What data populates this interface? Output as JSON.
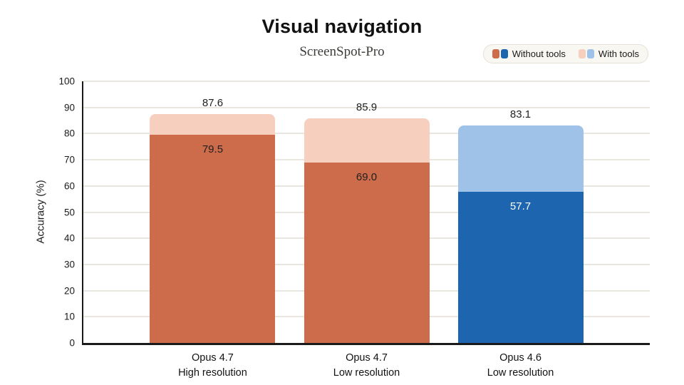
{
  "chart_data": {
    "type": "bar",
    "variant": "stacked",
    "title": "Visual navigation",
    "subtitle": "ScreenSpot-Pro",
    "ylabel": "Accuracy (%)",
    "ylim": [
      0,
      100
    ],
    "ytick_step": 10,
    "grid": true,
    "legend_position": "top-right",
    "categories": [
      {
        "line1": "Opus 4.7",
        "line2": "High resolution"
      },
      {
        "line1": "Opus 4.7",
        "line2": "Low resolution"
      },
      {
        "line1": "Opus 4.6",
        "line2": "Low resolution"
      }
    ],
    "series": [
      {
        "name": "Without tools",
        "values": [
          79.5,
          69.0,
          57.7
        ],
        "colors": [
          "#CC6C4A",
          "#CC6C4A",
          "#1E65AF"
        ],
        "value_label_colors": [
          "#1f1f1f",
          "#1f1f1f",
          "#ffffff"
        ]
      },
      {
        "name": "With tools",
        "values_total": [
          87.6,
          85.9,
          83.1
        ],
        "colors": [
          "#F6CFBF",
          "#F6CFBF",
          "#9FC3E8"
        ]
      }
    ],
    "legend": [
      {
        "label": "Without tools",
        "swatches": [
          "#CC6C4A",
          "#1E65AF"
        ]
      },
      {
        "label": "With tools",
        "swatches": [
          "#F6CFBF",
          "#9FC3E8"
        ]
      }
    ],
    "colors": {
      "axis": "#1a1a1a",
      "gridline": "#e9e6e0",
      "legend_bg": "#f9f7f1",
      "legend_border": "#e5e1d8",
      "background": "#ffffff"
    }
  }
}
